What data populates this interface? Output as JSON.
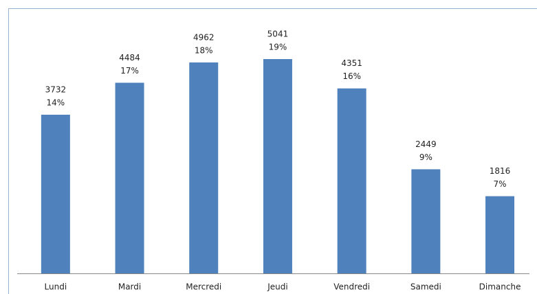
{
  "chart_data": {
    "type": "bar",
    "categories": [
      "Lundi",
      "Mardi",
      "Mercredi",
      "Jeudi",
      "Vendredi",
      "Samedi",
      "Dimanche"
    ],
    "values": [
      3732,
      4484,
      4962,
      5041,
      4351,
      2449,
      1816
    ],
    "percent_labels": [
      "14%",
      "17%",
      "18%",
      "19%",
      "16%",
      "9%",
      "7%"
    ],
    "color": "#4f81bd"
  }
}
